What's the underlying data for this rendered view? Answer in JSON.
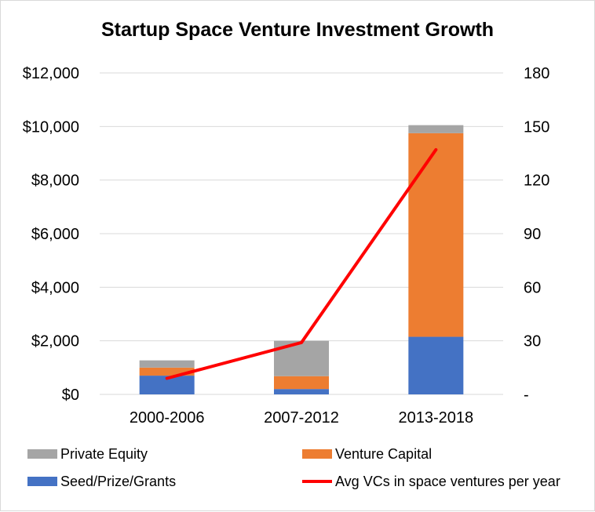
{
  "chart_data": {
    "type": "bar",
    "stacked": true,
    "title": "Startup Space Venture Investment Growth",
    "categories": [
      "2000-2006",
      "2007-2012",
      "2013-2018"
    ],
    "series": [
      {
        "name": "Seed/Prize/Grants",
        "type": "bar",
        "axis": "left",
        "color": "#4472c4",
        "values": [
          700,
          200,
          2150
        ]
      },
      {
        "name": "Venture Capital",
        "type": "bar",
        "axis": "left",
        "color": "#ed7d31",
        "values": [
          300,
          480,
          7600
        ]
      },
      {
        "name": "Private Equity",
        "type": "bar",
        "axis": "left",
        "color": "#a5a5a5",
        "values": [
          270,
          1320,
          300
        ]
      },
      {
        "name": "Avg VCs in space ventures per year",
        "type": "line",
        "axis": "right",
        "color": "#ff0000",
        "values": [
          9,
          29,
          137
        ]
      }
    ],
    "y_left": {
      "min": 0,
      "max": 12000,
      "ticks": [
        "$0",
        "$2,000",
        "$4,000",
        "$6,000",
        "$8,000",
        "$10,000",
        "$12,000"
      ]
    },
    "y_right": {
      "min": 0,
      "max": 180,
      "ticks": [
        "-",
        "30",
        "60",
        "90",
        "120",
        "150",
        "180"
      ]
    },
    "grid": true,
    "legend_position": "bottom",
    "legend_order": [
      "Private Equity",
      "Venture Capital",
      "Seed/Prize/Grants",
      "Avg VCs in space ventures per year"
    ]
  }
}
